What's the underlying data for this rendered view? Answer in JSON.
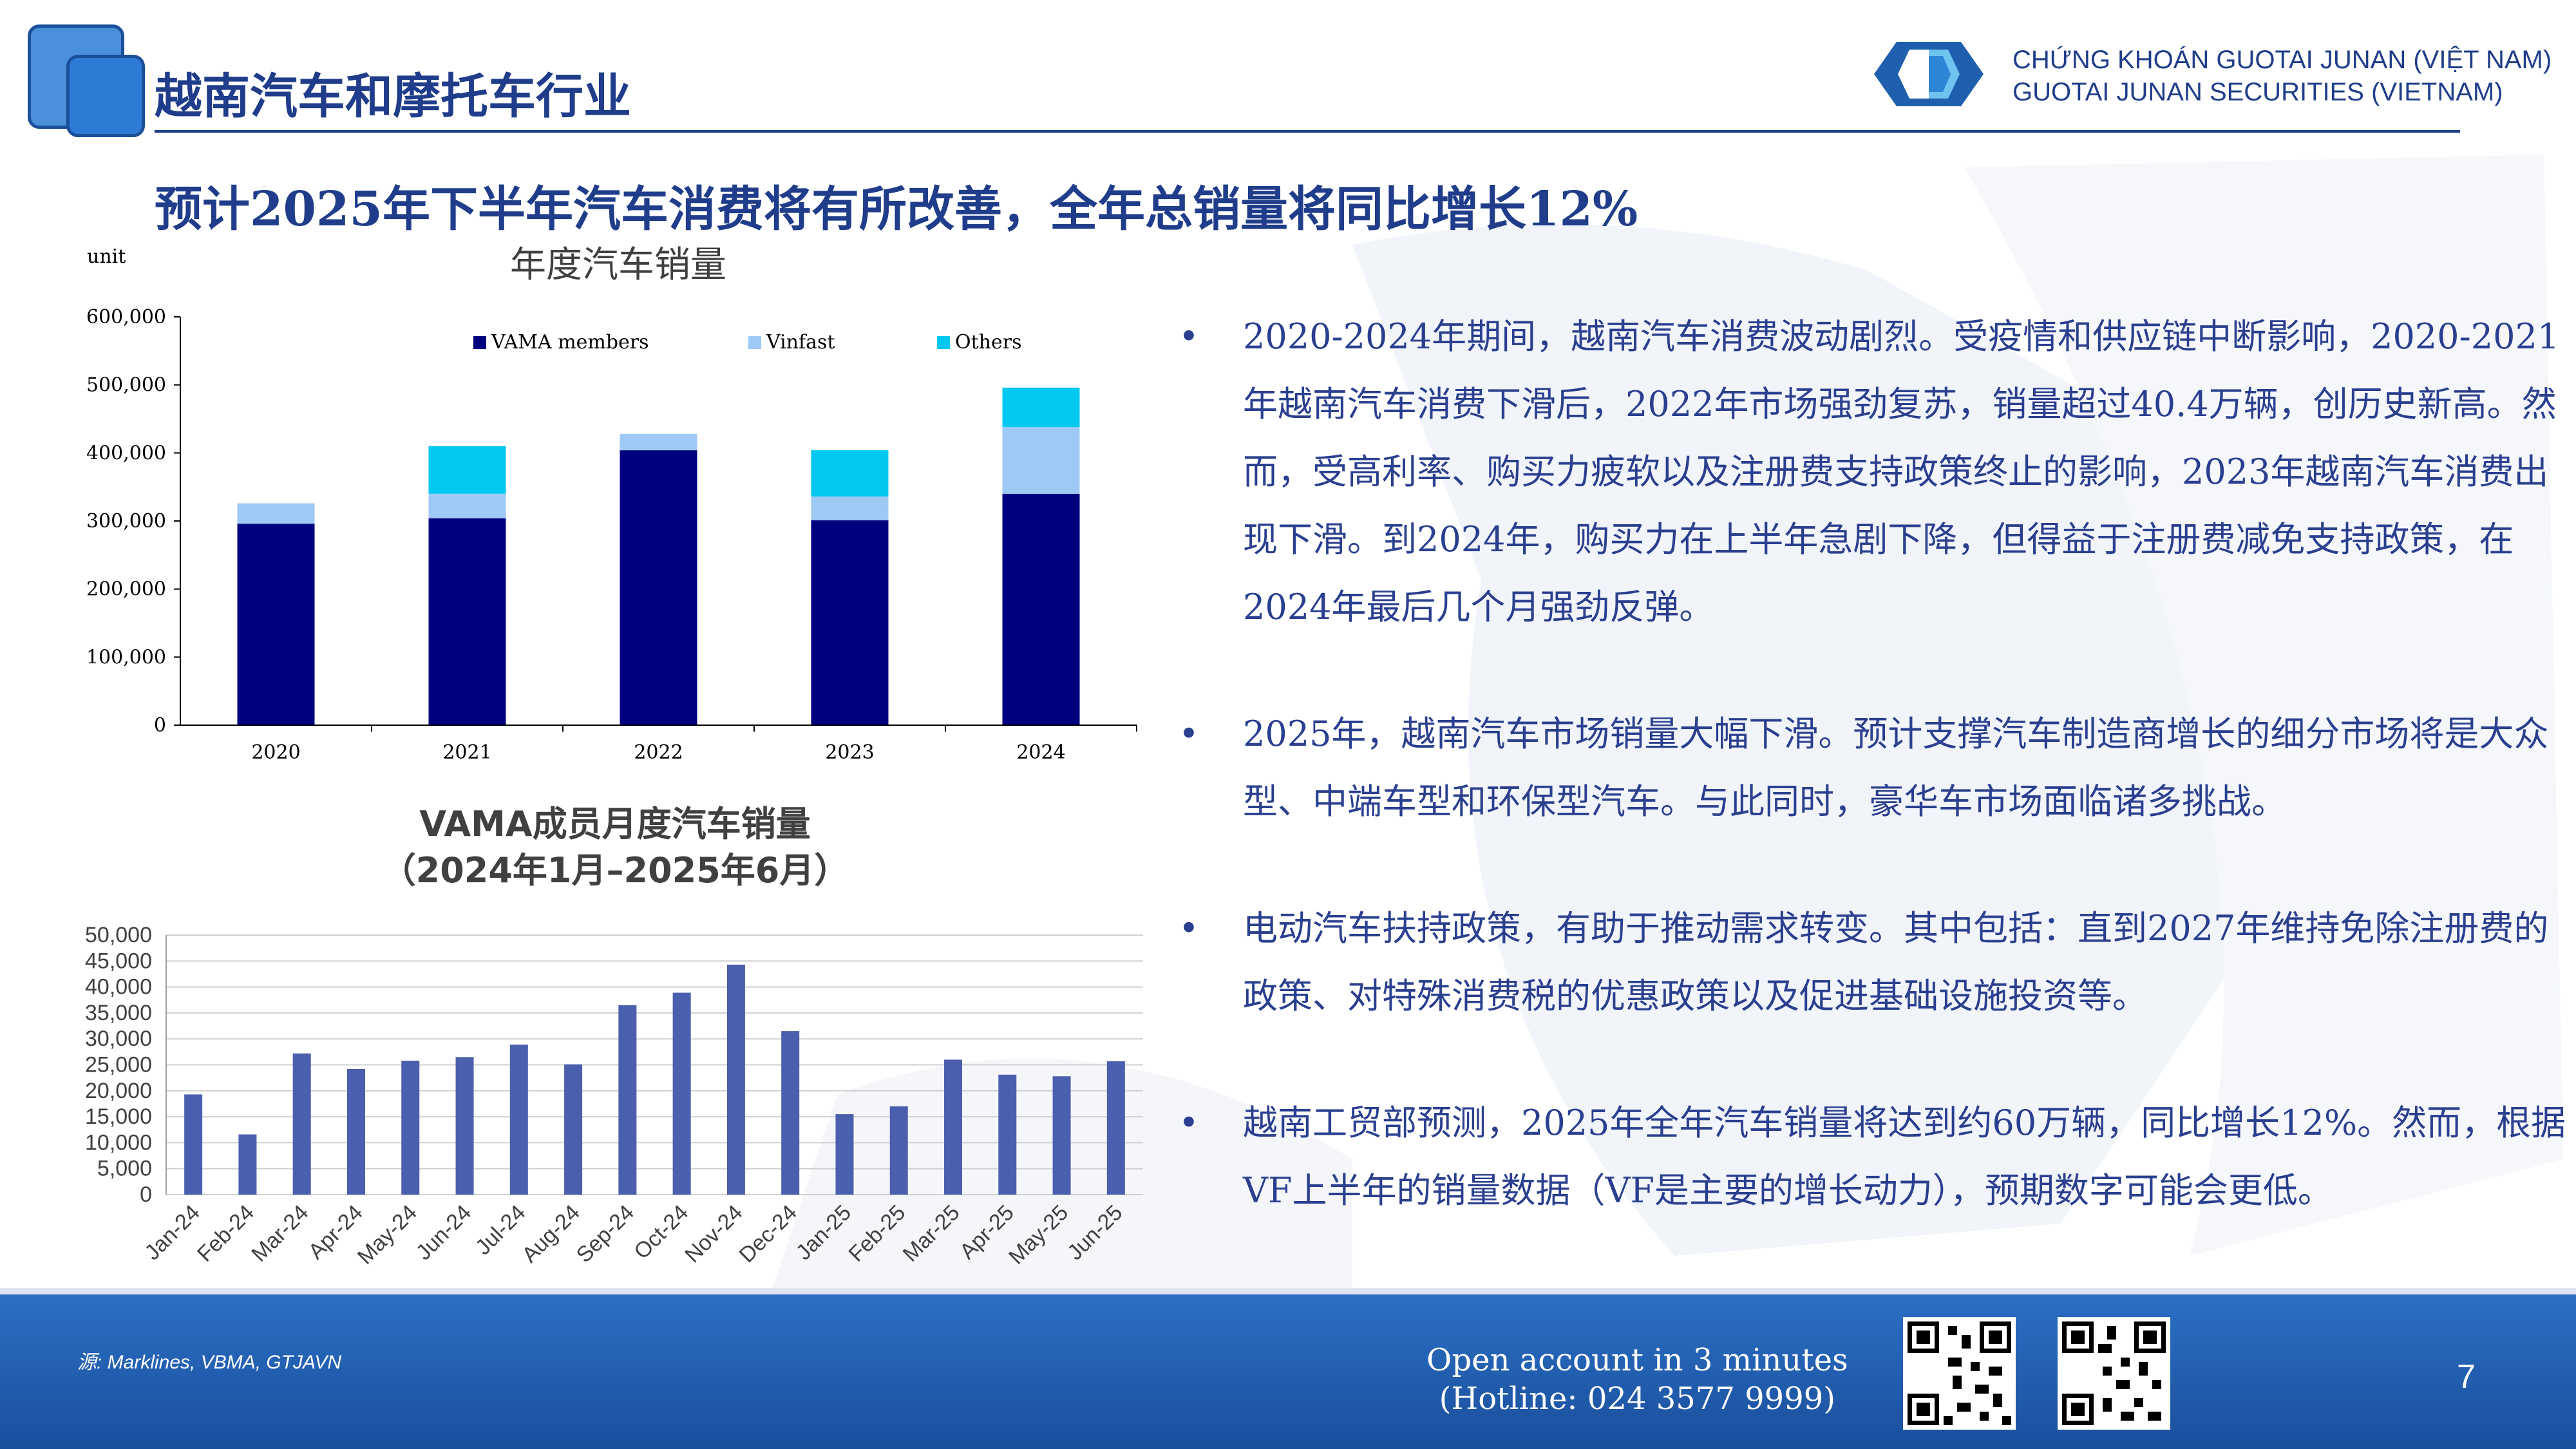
{
  "header": {
    "section_title": "越南汽车和摩托车行业",
    "company_line1": "CHỨNG KHOÁN GUOTAI JUNAN (VIỆT NAM)",
    "company_line2": "GUOTAI JUNAN SECURITIES (VIETNAM)"
  },
  "headline": "预计2025年下半年汽车消费将有所改善，全年总销量将同比增长12%",
  "bullets": [
    "2020-2024年期间，越南汽车消费波动剧烈。受疫情和供应链中断影响，2020-2021年越南汽车消费下滑后，2022年市场强劲复苏，销量超过40.4万辆，创历史新高。然而，受高利率、购买力疲软以及注册费支持政策终止的影响，2023年越南汽车消费出现下滑。到2024年，购买力在上半年急剧下降，但得益于注册费减免支持政策，在2024年最后几个月强劲反弹。",
    "2025年，越南汽车市场销量大幅下滑。预计支撑汽车制造商增长的细分市场将是大众型、中端车型和环保型汽车。与此同时，豪华车市场面临诸多挑战。",
    "电动汽车扶持政策，有助于推动需求转变。其中包括：直到2027年维持免除注册费的政策、对特殊消费税的优惠政策以及促进基础设施投资等。",
    "越南工贸部预测，2025年全年汽车销量将达到约60万辆，同比增长12%。然而，根据VF上半年的销量数据（VF是主要的增长动力），预期数字可能会更低。"
  ],
  "footer": {
    "source": "源: Marklines, VBMA, GTJAVN",
    "open_account_line1": "Open account in 3 minutes",
    "open_account_line2": "(Hotline: 024 3577 9999)",
    "page_number": "7"
  },
  "colors": {
    "brand_blue": "#1f3d8a",
    "vama": "#00007f",
    "vinfast": "#9ec9f5",
    "others": "#00c8f0",
    "monthly_bar": "#4a5fad"
  },
  "chart_data": [
    {
      "type": "bar",
      "stacked": true,
      "title": "年度汽车销量",
      "unit_label": "unit",
      "categories": [
        "2020",
        "2021",
        "2022",
        "2023",
        "2024"
      ],
      "series": [
        {
          "name": "VAMA members",
          "values": [
            296000,
            304000,
            404000,
            301000,
            340000
          ]
        },
        {
          "name": "Vinfast",
          "values": [
            30000,
            36000,
            24000,
            35000,
            98000
          ]
        },
        {
          "name": "Others",
          "values": [
            0,
            70000,
            0,
            68000,
            58000
          ]
        }
      ],
      "ylim": [
        0,
        600000
      ],
      "yticks": [
        "0",
        "100,000",
        "200,000",
        "300,000",
        "400,000",
        "500,000",
        "600,000"
      ],
      "legend": "top"
    },
    {
      "type": "bar",
      "title_line1": "VAMA成员月度汽车销量",
      "title_line2": "（2024年1月–2025年6月）",
      "categories": [
        "Jan-24",
        "Feb-24",
        "Mar-24",
        "Apr-24",
        "May-24",
        "Jun-24",
        "Jul-24",
        "Aug-24",
        "Sep-24",
        "Oct-24",
        "Nov-24",
        "Dec-24",
        "Jan-25",
        "Feb-25",
        "Mar-25",
        "Apr-25",
        "May-25",
        "Jun-25"
      ],
      "values": [
        19300,
        11600,
        27200,
        24200,
        25800,
        26500,
        28900,
        25100,
        36500,
        38900,
        44300,
        31500,
        15500,
        17000,
        26000,
        23100,
        22800,
        25700
      ],
      "ylim": [
        0,
        50000
      ],
      "yticks": [
        "0",
        "5,000",
        "10,000",
        "15,000",
        "20,000",
        "25,000",
        "30,000",
        "35,000",
        "40,000",
        "45,000",
        "50,000"
      ],
      "grid": true
    }
  ]
}
